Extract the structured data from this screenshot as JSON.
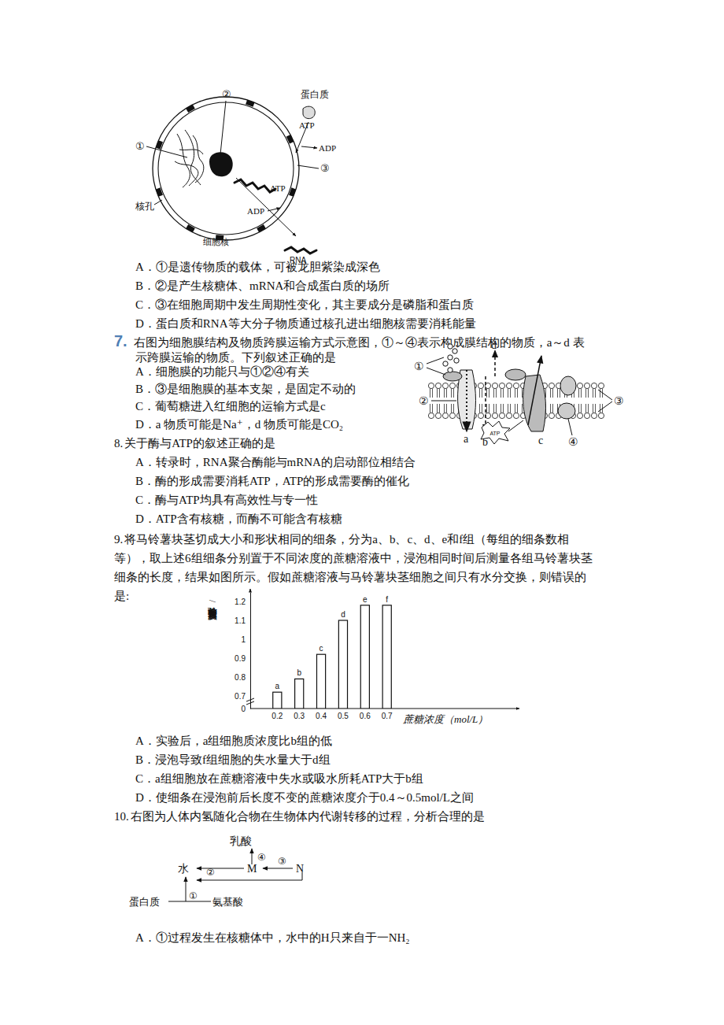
{
  "chart_data": {
    "type": "bar",
    "categories": [
      "0.2",
      "0.3",
      "0.4",
      "0.5",
      "0.6",
      "0.7"
    ],
    "values": [
      0.72,
      0.79,
      0.92,
      1.1,
      1.18,
      1.18
    ],
    "annotations": [
      "a",
      "b",
      "c",
      "d",
      "e",
      "f"
    ],
    "xlabel": "蔗糖浓度（mol/L）",
    "ylabel": "实验前长度/实验后长度",
    "color": "#ffffff",
    "ylim": [
      0,
      1.25
    ],
    "yticks": [
      0,
      0.7,
      0.8,
      0.9,
      1.0,
      1.1,
      1.2
    ]
  },
  "document": {
    "fig_nucleus": {
      "l2": "②",
      "protein": "蛋白质",
      "atp": "ATP",
      "adp": "ADP",
      "l1": "①",
      "l3": "③",
      "pore": "核孔",
      "nucleus": "细胞核",
      "rna": "RNA"
    },
    "fig_membrane": {
      "l1": "①",
      "l2": "②",
      "l3": "③",
      "l4": "④",
      "a": "a",
      "b": "b",
      "c": "c",
      "d": "d",
      "atp": "ATP"
    },
    "fig_metabolism": {
      "lactic": "乳酸",
      "c4": "④",
      "water": "水",
      "c2": "②",
      "m": "M",
      "c3": "③",
      "n": "N",
      "c1": "①",
      "protein": "蛋白质",
      "amino": "氨基酸"
    },
    "questions": [
      {
        "options": [
          "A．①是遗传物质的载体，可被龙胆紫染成深色",
          "B．②是产生核糖体、mRNA和合成蛋白质的场所",
          "C．③在细胞周期中发生周期性变化，其主要成分是磷脂和蛋白质",
          "D．蛋白质和RNA等大分子物质通过核孔进出细胞核需要消耗能量"
        ]
      },
      {
        "number": "7.",
        "stem": [
          "右图为细胞膜结构及物质跨膜运输方式示意图，①～④表示构成膜结构的物质，a～d 表",
          "示跨膜运输的物质。下列叙述正确的是"
        ],
        "options": [
          "A．细胞膜的功能只与①②④有关",
          "B．③是细胞膜的基本支架，是固定不动的",
          "C．葡萄糖进入红细胞的运输方式是c",
          "D．a 物质可能是Na⁺，d 物质可能是CO₂"
        ]
      },
      {
        "number": "8.",
        "stem": [
          "关于酶与ATP的叙述正确的是"
        ],
        "options": [
          "A．转录时，RNA聚合酶能与mRNA的启动部位相结合",
          "B．酶的形成需要消耗ATP，ATP的形成需要酶的催化",
          "C．酶与ATP均具有高效性与专一性",
          "D．ATP含有核糖，而酶不可能含有核糖"
        ]
      },
      {
        "number": "9.",
        "stem": [
          "将马铃薯块茎切成大小和形状相同的细条，分为a、b、c、d、e和f组（每组的细条数相",
          "等），取上述6组细条分别置于不同浓度的蔗糖溶液中，浸泡相同时间后测量各组马铃薯块茎",
          "细条的长度，结果如图所示。假如蔗糖溶液与马铃薯块茎细胞之间只有水分交换，则错误的",
          "是:"
        ],
        "options": [
          "A．实验后，a组细胞质浓度比b组的低",
          "B．浸泡导致f组细胞的失水量大于d组",
          "C．a组细胞放在蔗糖溶液中失水或吸水所耗ATP大于b组",
          "D．使细条在浸泡前后长度不变的蔗糖浓度介于0.4～0.5mol/L之间"
        ]
      },
      {
        "number": "10.",
        "stem": [
          "右图为人体内氢随化合物在生物体内代谢转移的过程，分析合理的是"
        ],
        "options": [
          "A．①过程发生在核糖体中，水中的H只来自于一NH₂"
        ]
      }
    ]
  }
}
